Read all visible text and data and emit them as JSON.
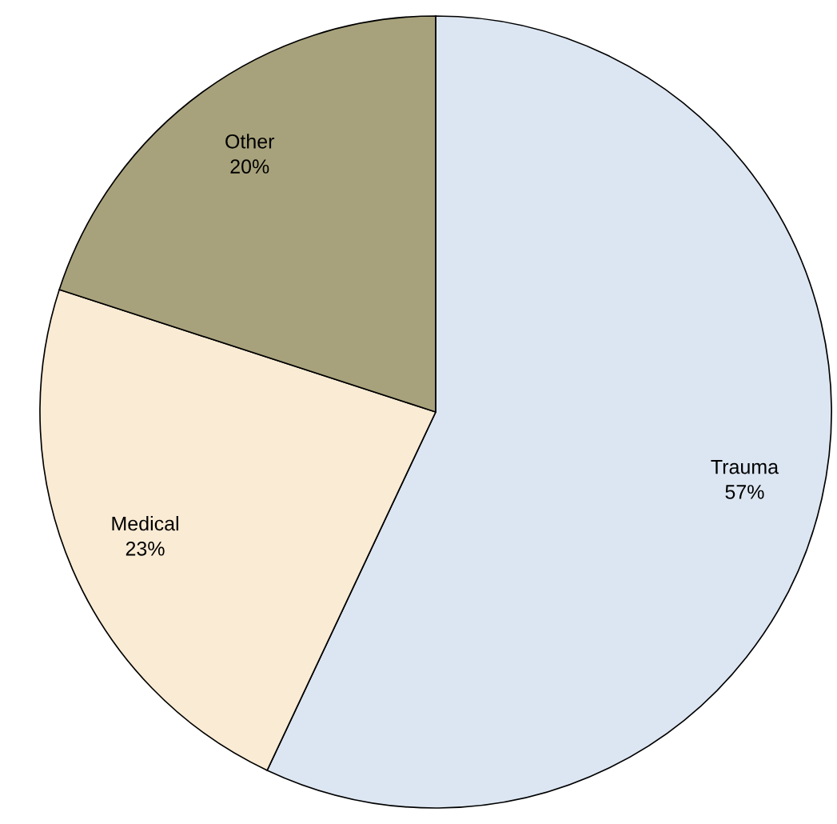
{
  "chart_data": {
    "type": "pie",
    "categories": [
      "Trauma",
      "Medical",
      "Other"
    ],
    "values": [
      57,
      23,
      20
    ],
    "value_labels": [
      "57%",
      "23%",
      "20%"
    ],
    "colors": [
      "#dce6f2",
      "#faebd4",
      "#a8a27c"
    ]
  }
}
